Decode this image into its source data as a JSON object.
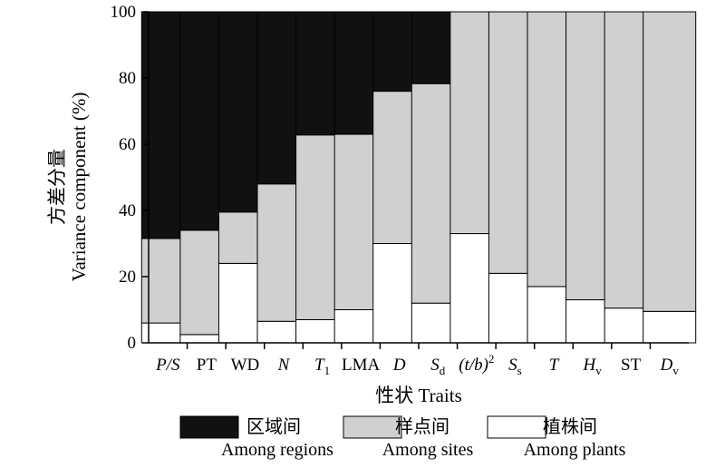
{
  "chart_data": {
    "type": "bar",
    "stacked": true,
    "categories": [
      {
        "base": "P/S",
        "italic": true,
        "sub": "",
        "sup": ""
      },
      {
        "base": "PT",
        "italic": false,
        "sub": "",
        "sup": ""
      },
      {
        "base": "WD",
        "italic": false,
        "sub": "",
        "sup": ""
      },
      {
        "base": "N",
        "italic": true,
        "sub": "",
        "sup": ""
      },
      {
        "base": "T",
        "italic": true,
        "sub": "1",
        "sup": ""
      },
      {
        "base": "LMA",
        "italic": false,
        "sub": "",
        "sup": ""
      },
      {
        "base": "D",
        "italic": true,
        "sub": "",
        "sup": ""
      },
      {
        "base": "S",
        "italic": true,
        "sub": "d",
        "sup": ""
      },
      {
        "base": "(t/b)",
        "italic": true,
        "sub": "",
        "sup": "2"
      },
      {
        "base": "S",
        "italic": true,
        "sub": "s",
        "sup": ""
      },
      {
        "base": "T",
        "italic": true,
        "sub": "",
        "sup": ""
      },
      {
        "base": "H",
        "italic": true,
        "sub": "v",
        "sup": ""
      },
      {
        "base": "ST",
        "italic": false,
        "sub": "",
        "sup": ""
      },
      {
        "base": "D",
        "italic": true,
        "sub": "v",
        "sup": ""
      }
    ],
    "series": [
      {
        "name": "Among plants",
        "name_zh": "植株间",
        "color": "#ffffff",
        "values": [
          6,
          2.5,
          24,
          6.5,
          7,
          10,
          30,
          12,
          33,
          21,
          17,
          13,
          10.5,
          9.5
        ]
      },
      {
        "name": "Among sites",
        "name_zh": "样点间",
        "color": "#d0d0d0",
        "values": [
          25.5,
          31.5,
          15.5,
          41.5,
          55.8,
          53,
          46,
          66.3,
          67,
          79,
          83,
          87,
          89.5,
          90.5
        ]
      },
      {
        "name": "Among regions",
        "name_zh": "区域间",
        "color": "#111111",
        "values": [
          68.5,
          66,
          60.5,
          52,
          37.2,
          37,
          24,
          21.7,
          0,
          0,
          0,
          0,
          0,
          0
        ]
      }
    ],
    "ylim": [
      0,
      100
    ],
    "yticks": [
      0,
      20,
      40,
      60,
      80,
      100
    ],
    "ylabel_zh": "方差分量",
    "ylabel": "Variance component (%)",
    "xlabel_zh": "性状",
    "xlabel": "Traits",
    "legend_order": [
      2,
      1,
      0
    ],
    "legend_placement": "bottom"
  }
}
